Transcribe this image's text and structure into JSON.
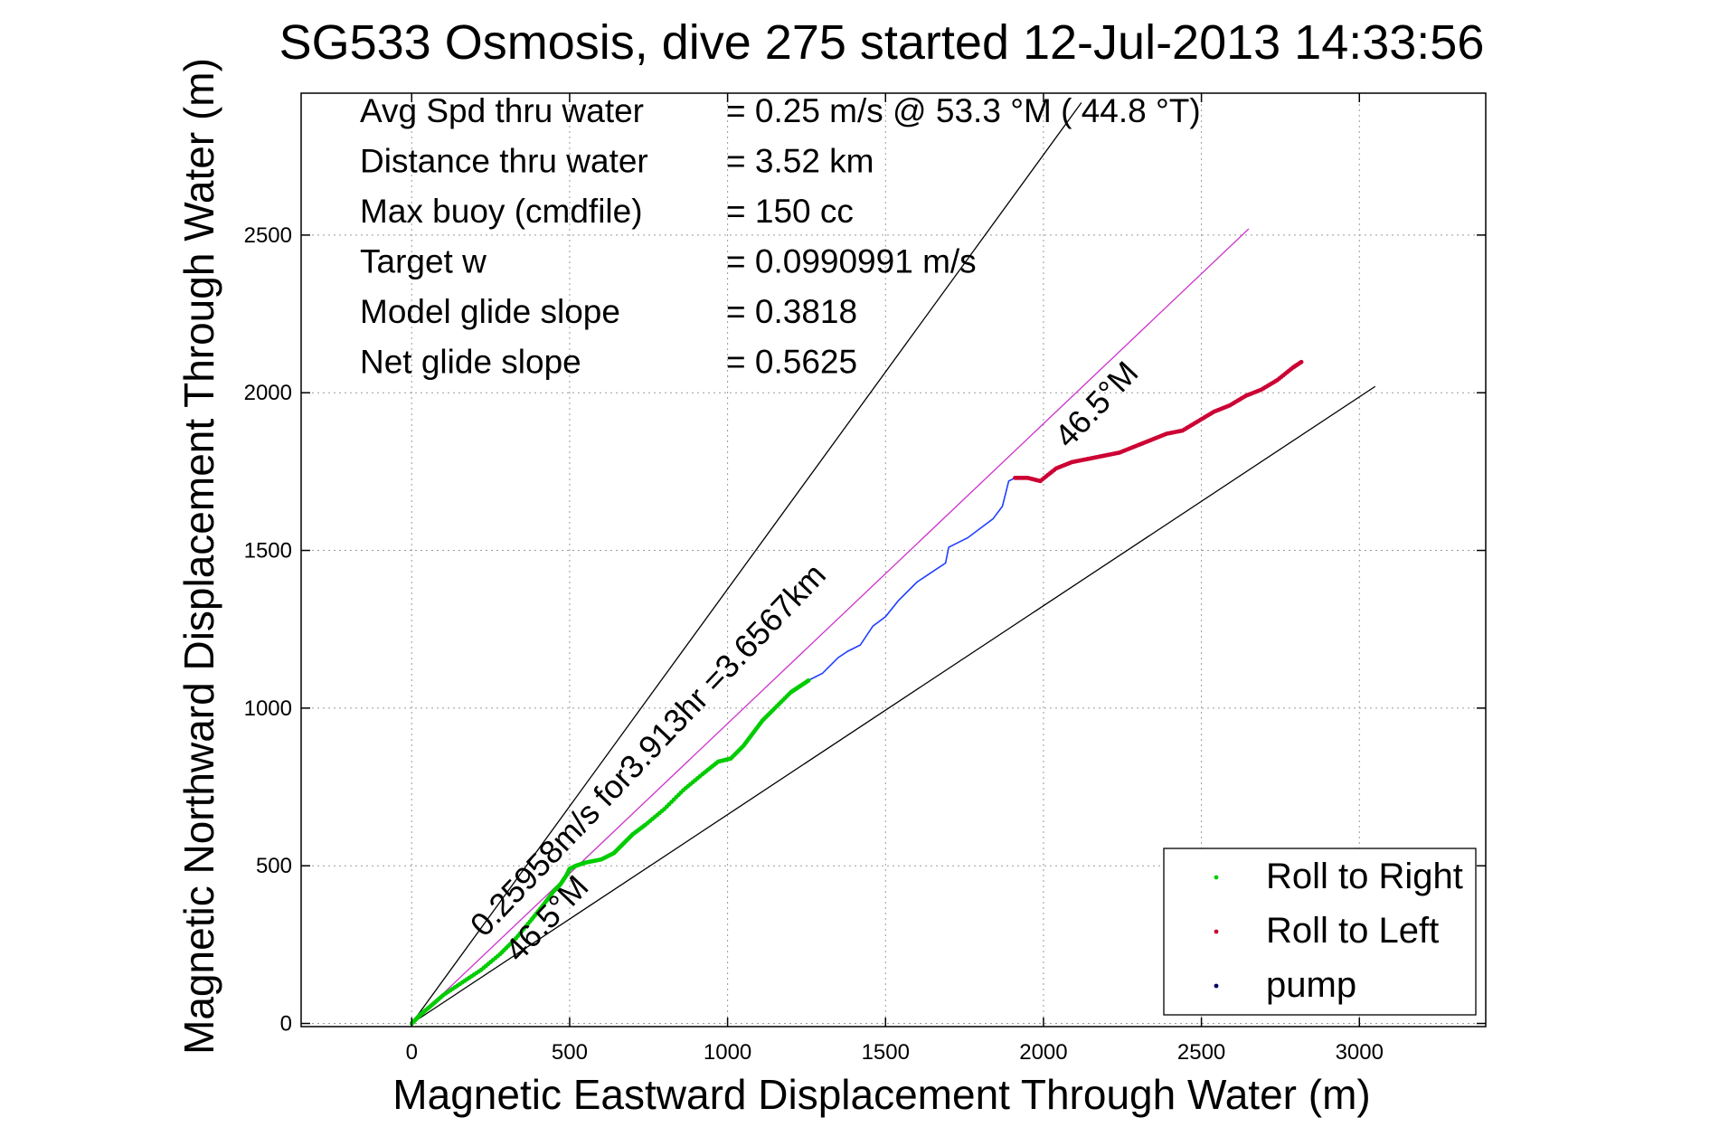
{
  "colors": {
    "background": "#ffffff",
    "axes": "#000000",
    "grid": "#9a9a9a",
    "roll_right": "#00cc00",
    "roll_left": "#cc0033",
    "pump": "#000066",
    "track_line": "#2040ff",
    "target_heading_line": "#cc33cc",
    "envelope_line": "#000000"
  },
  "chart_data": {
    "type": "line",
    "title": "SG533 Osmosis, dive 275 started 12-Jul-2013 14:33:56",
    "xlabel": "Magnetic Eastward Displacement Through Water (m)",
    "ylabel": "Magnetic Northward Displacement Through Water (m)",
    "xlim": [
      -350,
      3400
    ],
    "ylim": [
      -10,
      2950
    ],
    "xticks": [
      0,
      500,
      1000,
      1500,
      2000,
      2500,
      3000
    ],
    "yticks": [
      0,
      500,
      1000,
      1500,
      2000,
      2500
    ],
    "xtick_labels": [
      "0",
      "500",
      "1000",
      "1500",
      "2000",
      "2500",
      "3000"
    ],
    "ytick_labels": [
      "0",
      "500",
      "1000",
      "1500",
      "2000",
      "2500"
    ],
    "grid": true,
    "legend_position": "bottom-right",
    "stats": [
      {
        "label": "Avg Spd thru water",
        "value": "=  0.25 m/s @  53.3 °M ( 44.8 °T)"
      },
      {
        "label": "Distance thru water",
        "value": "=  3.52 km"
      },
      {
        "label": "Max buoy (cmdfile)",
        "value": "= 150 cc"
      },
      {
        "label": "Target w",
        "value": "= 0.0990991 m/s"
      },
      {
        "label": "Model glide slope",
        "value": "= 0.3818"
      },
      {
        "label": "Net glide slope",
        "value": "= 0.5625"
      }
    ],
    "annotations": [
      {
        "text": "0.25958m/s for3.913hr =3.6567km",
        "x": 230,
        "y": 270,
        "angle_deg": 46.5
      },
      {
        "text": "46.5°M",
        "x": 340,
        "y": 190,
        "angle_deg": 46.5
      },
      {
        "text": "46.5°M",
        "x": 2080,
        "y": 1820,
        "angle_deg": 46.5
      }
    ],
    "reference_lines": [
      {
        "name": "target heading",
        "x": [
          0,
          2650
        ],
        "y": [
          0,
          2520
        ],
        "color": "#cc33cc"
      },
      {
        "name": "envelope upper",
        "x": [
          0,
          2120
        ],
        "y": [
          0,
          2920
        ],
        "color": "#000000"
      },
      {
        "name": "envelope lower",
        "x": [
          0,
          3050
        ],
        "y": [
          0,
          2020
        ],
        "color": "#000000"
      }
    ],
    "track": {
      "x": [
        0,
        10,
        30,
        60,
        100,
        160,
        220,
        280,
        330,
        380,
        420,
        450,
        470,
        490,
        500,
        520,
        550,
        600,
        640,
        670,
        700,
        740,
        800,
        860,
        920,
        970,
        1010,
        1050,
        1080,
        1110,
        1150,
        1200,
        1230,
        1260,
        1300,
        1330,
        1350,
        1380,
        1420,
        1440,
        1460,
        1500,
        1540,
        1580,
        1600,
        1630,
        1660,
        1690,
        1700,
        1720,
        1760,
        1800,
        1840,
        1870,
        1890,
        1910,
        1950,
        1990,
        2040,
        2090,
        2140,
        2190,
        2240,
        2290,
        2340,
        2390,
        2440,
        2490,
        2540,
        2590,
        2640,
        2690,
        2740,
        2790,
        2820
      ],
      "y": [
        0,
        10,
        30,
        55,
        90,
        130,
        170,
        220,
        270,
        330,
        380,
        420,
        440,
        470,
        490,
        500,
        510,
        520,
        540,
        570,
        600,
        630,
        680,
        740,
        790,
        830,
        840,
        880,
        920,
        960,
        1000,
        1050,
        1070,
        1090,
        1110,
        1140,
        1160,
        1180,
        1200,
        1230,
        1260,
        1290,
        1340,
        1380,
        1400,
        1420,
        1440,
        1460,
        1510,
        1520,
        1540,
        1570,
        1600,
        1640,
        1720,
        1730,
        1730,
        1720,
        1760,
        1780,
        1790,
        1800,
        1810,
        1830,
        1850,
        1870,
        1880,
        1910,
        1940,
        1960,
        1990,
        2010,
        2040,
        2080,
        2100
      ]
    },
    "series": [
      {
        "name": "Roll to Right",
        "color": "#00cc00",
        "marker": "dot"
      },
      {
        "name": "Roll to Left",
        "color": "#cc0033",
        "marker": "dot"
      },
      {
        "name": "pump",
        "color": "#000066",
        "marker": "dot"
      }
    ]
  }
}
